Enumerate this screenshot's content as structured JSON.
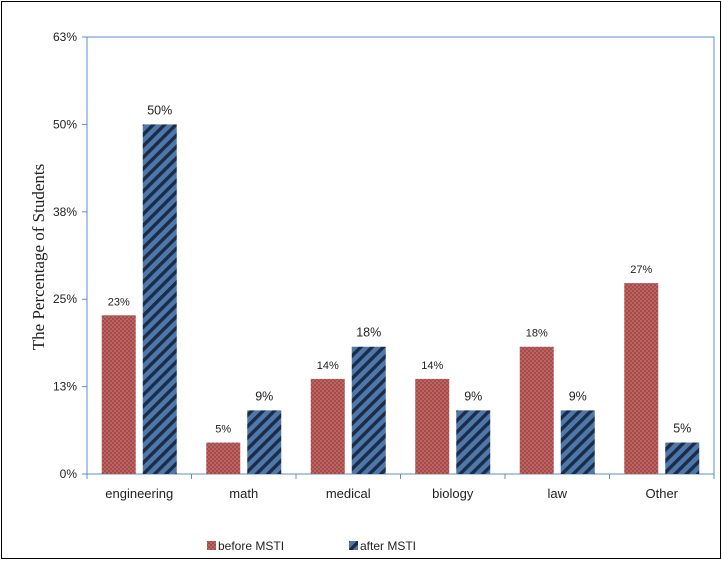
{
  "colors": {
    "before": "#a94a48",
    "before_dots": "#c98886",
    "after": "#4f78aa",
    "after_stripe": "#1b2c48",
    "axis": "#5b8fd0"
  },
  "chart_data": {
    "type": "bar",
    "categories": [
      "engineering",
      "math",
      "medical",
      "biology",
      "law",
      "Other"
    ],
    "series": [
      {
        "name": "before MSTI",
        "values": [
          22.7,
          4.5,
          13.6,
          13.6,
          18.2,
          27.3
        ],
        "labels": [
          "23%",
          "5%",
          "14%",
          "14%",
          "18%",
          "27%"
        ]
      },
      {
        "name": "after MSTI",
        "values": [
          50,
          9.1,
          18.2,
          9.1,
          9.1,
          4.5
        ],
        "labels": [
          "50%",
          "9%",
          "18%",
          "9%",
          "9%",
          "5%"
        ]
      }
    ],
    "ylabel": "The Percentage of Students",
    "ylim": [
      0,
      62.5
    ],
    "yticks": [
      0,
      12.5,
      25,
      37.5,
      50,
      62.5
    ],
    "ytick_labels": [
      "0%",
      "13%",
      "25%",
      "38%",
      "50%",
      "63%"
    ],
    "legend": [
      "before MSTI",
      "after MSTI"
    ],
    "legend_position": "bottom",
    "grid": false
  }
}
